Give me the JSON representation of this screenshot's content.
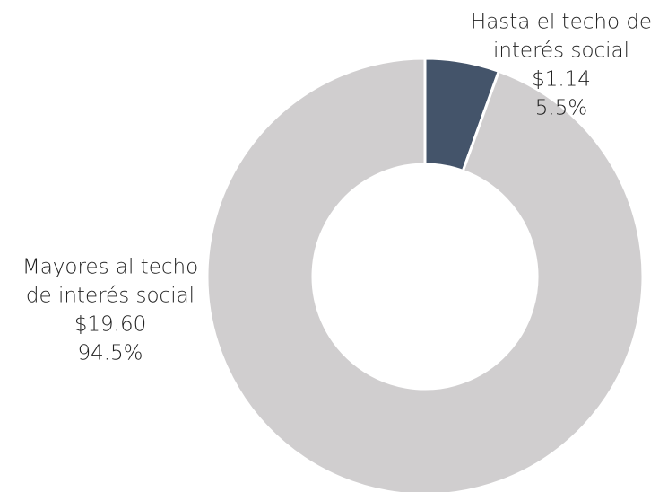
{
  "chart_data": {
    "type": "donut",
    "categories": [
      [
        "Hasta el techo de",
        "interés social"
      ],
      [
        "Mayores al techo",
        "de interés social"
      ]
    ],
    "amounts": [
      {
        "value": 1.14,
        "label": "$1.14"
      },
      {
        "value": 19.6,
        "label": "$19.60"
      }
    ],
    "values": [
      5.5,
      94.5
    ],
    "value_labels": [
      "5.5%",
      "94.5%"
    ],
    "colors": [
      "#44546a",
      "#d0cecf"
    ]
  }
}
